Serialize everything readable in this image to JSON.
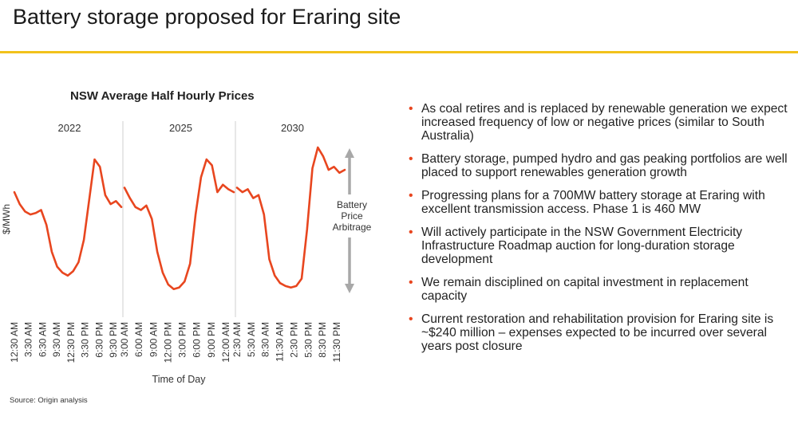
{
  "slide": {
    "title": "Battery storage proposed for Eraring site",
    "accent_color": "#f2c21b",
    "source": "Source: Origin analysis"
  },
  "chart_data": {
    "type": "line",
    "title": "NSW Average Half Hourly Prices",
    "ylabel": "$/MWh",
    "xlabel": "Time of Day",
    "line_color": "#e8461f",
    "panels": [
      {
        "name": "2022",
        "x_ticks": [
          "12:30 AM",
          "3:30 AM",
          "6:30 AM",
          "9:30 AM",
          "12:30 PM",
          "3:30 PM",
          "6:30 PM",
          "9:30 PM"
        ],
        "y_relative": [
          0.7,
          0.62,
          0.57,
          0.55,
          0.56,
          0.58,
          0.48,
          0.3,
          0.2,
          0.16,
          0.14,
          0.17,
          0.23,
          0.38,
          0.65,
          0.92,
          0.87,
          0.68,
          0.62,
          0.64,
          0.6
        ]
      },
      {
        "name": "2025",
        "x_ticks": [
          "3:00 AM",
          "6:00 AM",
          "9:00 AM",
          "12:00 PM",
          "3:00 PM",
          "6:00 PM",
          "9:00 PM",
          "12:00 AM"
        ],
        "y_relative": [
          0.73,
          0.66,
          0.6,
          0.58,
          0.61,
          0.52,
          0.3,
          0.16,
          0.08,
          0.05,
          0.06,
          0.1,
          0.22,
          0.55,
          0.8,
          0.92,
          0.88,
          0.7,
          0.75,
          0.72,
          0.7
        ]
      },
      {
        "name": "2030",
        "x_ticks": [
          "2:30 AM",
          "5:30 AM",
          "8:30 AM",
          "11:30 AM",
          "2:30 PM",
          "5:30 PM",
          "8:30 PM",
          "11:30 PM"
        ],
        "y_relative": [
          0.73,
          0.7,
          0.72,
          0.66,
          0.68,
          0.55,
          0.25,
          0.14,
          0.09,
          0.07,
          0.06,
          0.07,
          0.12,
          0.45,
          0.86,
          1.0,
          0.94,
          0.85,
          0.87,
          0.83,
          0.85
        ]
      }
    ],
    "annotation": {
      "lines": [
        "Battery",
        "Price",
        "Arbitrage"
      ],
      "arrow_color": "#a8a8a8"
    },
    "grid": false
  },
  "bullets": [
    "As coal retires and is replaced by renewable generation we expect increased frequency of low or negative prices (similar to South Australia)",
    "Battery storage, pumped hydro and gas peaking portfolios are well placed to support renewables generation growth",
    "Progressing plans for a 700MW battery storage at Eraring with excellent transmission access. Phase 1 is 460 MW",
    "Will actively participate in the NSW Government Electricity Infrastructure Roadmap auction for long-duration storage development",
    "We remain disciplined on capital investment in replacement capacity",
    "Current restoration and rehabilitation provision for Eraring site is ~$240 million – expenses expected to be incurred over several years post closure"
  ],
  "bullet_color": "#e8461f"
}
